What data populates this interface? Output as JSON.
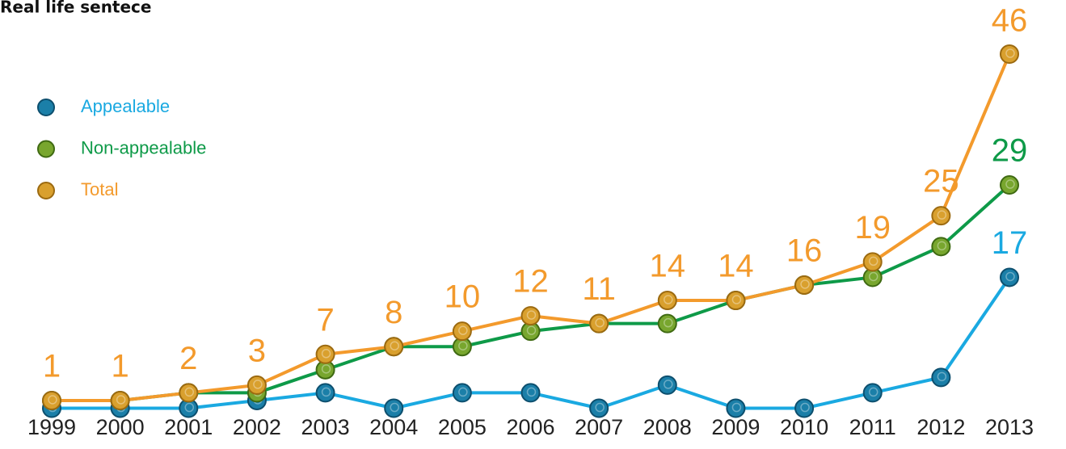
{
  "chart_data": {
    "type": "line",
    "title": "Real life sentece",
    "categories": [
      "1999",
      "2000",
      "2001",
      "2002",
      "2003",
      "2004",
      "2005",
      "2006",
      "2007",
      "2008",
      "2009",
      "2010",
      "2011",
      "2012",
      "2013"
    ],
    "series": [
      {
        "name": "Appealable",
        "color": "#1aa9e1",
        "values": [
          0,
          0,
          0,
          1,
          2,
          0,
          2,
          2,
          0,
          3,
          0,
          0,
          2,
          4,
          17
        ]
      },
      {
        "name": "Non-appealable",
        "color": "#0e9a48",
        "values": [
          1,
          1,
          2,
          2,
          5,
          8,
          8,
          10,
          11,
          11,
          14,
          16,
          17,
          21,
          29
        ]
      },
      {
        "name": "Total",
        "color": "#f39a2c",
        "values": [
          1,
          1,
          2,
          3,
          7,
          8,
          10,
          12,
          11,
          14,
          14,
          16,
          19,
          25,
          46
        ]
      }
    ]
  }
}
